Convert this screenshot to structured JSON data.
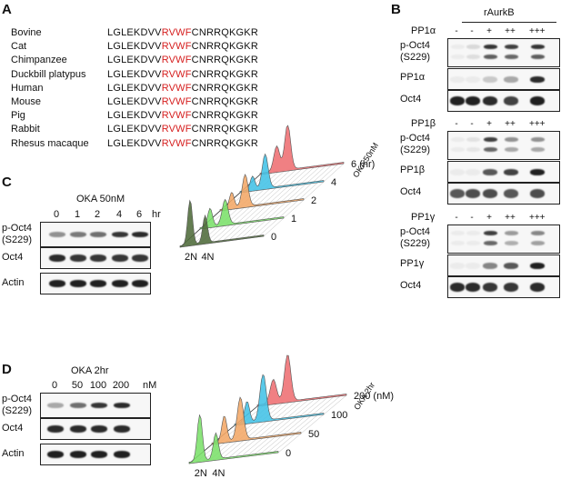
{
  "panels": {
    "a": {
      "letter": "A",
      "species": [
        "Bovine",
        "Cat",
        "Chimpanzee",
        "Duckbill platypus",
        "Human",
        "Mouse",
        "Pig",
        "Rabbit",
        "Rhesus macaque"
      ],
      "seq_pre": "LGLEKDVV",
      "seq_motif": "RVWF",
      "seq_post": "CNRRQKGKR",
      "motif_color": "#d62020"
    },
    "b": {
      "letter": "B",
      "rAurkB_label": "rAurkB",
      "lane_marks": [
        "-",
        "-",
        "+",
        "++",
        "+++"
      ],
      "blocks": [
        {
          "treatment": "PP1α",
          "rows": [
            "p-Oct4\n(S229)",
            "PP1α",
            "Oct4"
          ]
        },
        {
          "treatment": "PP1β",
          "rows": [
            "p-Oct4\n(S229)",
            "PP1β",
            "Oct4"
          ]
        },
        {
          "treatment": "PP1γ",
          "rows": [
            "p-Oct4\n(S229)",
            "PP1γ",
            "Oct4"
          ]
        }
      ]
    },
    "c": {
      "letter": "C",
      "treatment": "OKA 50nM",
      "lanes": [
        "0",
        "1",
        "2",
        "4",
        "6"
      ],
      "unit": "hr",
      "rows": [
        "p-Oct4\n(S229)",
        "Oct4",
        "Actin"
      ],
      "hist_labels": [
        "6 (hr)",
        "4",
        "2",
        "1",
        "0"
      ],
      "axis_label": "OKA 50nM",
      "dna": [
        "2N",
        "4N"
      ]
    },
    "d": {
      "letter": "D",
      "treatment": "OKA 2hr",
      "lanes": [
        "0",
        "50",
        "100",
        "200"
      ],
      "unit": "nM",
      "rows": [
        "p-Oct4\n(S229)",
        "Oct4",
        "Actin"
      ],
      "hist_labels": [
        "200 (nM)",
        "100",
        "50",
        "0"
      ],
      "axis_label": "OKA 2hr",
      "dna": [
        "2N",
        "4N"
      ]
    }
  },
  "colors": {
    "hist_c": [
      "#4e6b3a",
      "#7be06a",
      "#f2a766",
      "#42c2e6",
      "#ee6e72"
    ],
    "hist_d": [
      "#7be06a",
      "#f2a766",
      "#42c2e6",
      "#ee6e72"
    ]
  }
}
